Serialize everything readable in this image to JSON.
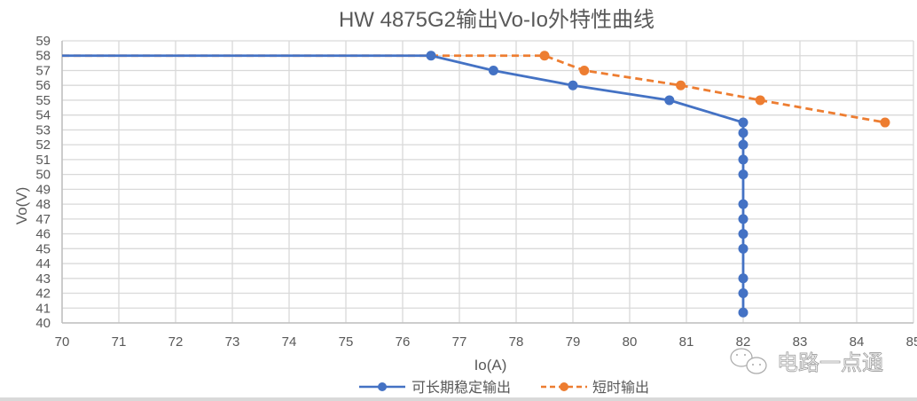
{
  "chart_data": {
    "type": "line",
    "title": "HW 4875G2输出Vo-Io外特性曲线",
    "xlabel": "Io(A)",
    "ylabel": "Vo(V)",
    "xlim": [
      70,
      85
    ],
    "ylim": [
      40,
      59
    ],
    "x_ticks": [
      70,
      71,
      72,
      73,
      74,
      75,
      76,
      77,
      78,
      79,
      80,
      81,
      82,
      83,
      84,
      85
    ],
    "y_ticks": [
      40,
      41,
      42,
      43,
      44,
      45,
      46,
      47,
      48,
      49,
      50,
      51,
      52,
      53,
      54,
      55,
      56,
      57,
      58,
      59
    ],
    "grid": true,
    "legend_position": "bottom",
    "series": [
      {
        "name": "可长期稳定输出",
        "color": "#4472c4",
        "line_style": "solid",
        "points": [
          {
            "x": 70,
            "y": 58,
            "marker": false
          },
          {
            "x": 76.5,
            "y": 58
          },
          {
            "x": 77.6,
            "y": 57
          },
          {
            "x": 79,
            "y": 56
          },
          {
            "x": 80.7,
            "y": 55
          },
          {
            "x": 82,
            "y": 53.5
          },
          {
            "x": 82,
            "y": 52.8
          },
          {
            "x": 82,
            "y": 52
          },
          {
            "x": 82,
            "y": 51
          },
          {
            "x": 82,
            "y": 50
          },
          {
            "x": 82,
            "y": 48
          },
          {
            "x": 82,
            "y": 47
          },
          {
            "x": 82,
            "y": 46
          },
          {
            "x": 82,
            "y": 45
          },
          {
            "x": 82,
            "y": 43
          },
          {
            "x": 82,
            "y": 42
          },
          {
            "x": 82,
            "y": 40.7
          }
        ]
      },
      {
        "name": "短时输出",
        "color": "#ed7d31",
        "line_style": "dashed",
        "points": [
          {
            "x": 70,
            "y": 58,
            "marker": false
          },
          {
            "x": 78.5,
            "y": 58
          },
          {
            "x": 79.2,
            "y": 57
          },
          {
            "x": 80.9,
            "y": 56
          },
          {
            "x": 82.3,
            "y": 55
          },
          {
            "x": 84.5,
            "y": 53.5
          }
        ]
      }
    ]
  },
  "watermark": {
    "icon": "wechat-icon",
    "text": "电路一点通"
  },
  "colors": {
    "grid": "#d9d9d9",
    "axis_text": "#595959",
    "title_text": "#595959"
  }
}
